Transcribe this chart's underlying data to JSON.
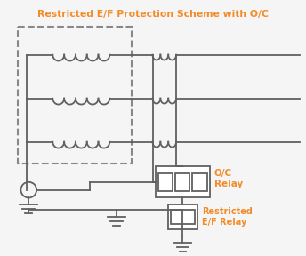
{
  "title": "Restricted E/F Protection Scheme with O/C",
  "title_color": "#F28C28",
  "bg_color": "#F5F5F5",
  "line_color": "#606060",
  "orange_color": "#F28C28",
  "figsize": [
    3.44,
    2.88
  ],
  "dpi": 100
}
